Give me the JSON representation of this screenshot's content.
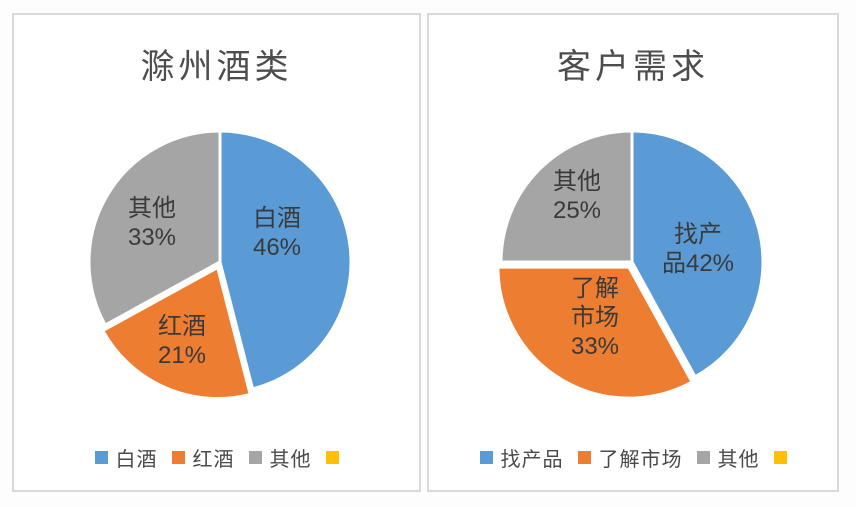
{
  "page": {
    "background": "#fdfdfd",
    "panel_border_color": "#d9d9d9"
  },
  "chart_data": [
    {
      "type": "pie",
      "title": "滁州酒类",
      "categories": [
        "白酒",
        "红酒",
        "其他"
      ],
      "values": [
        46,
        21,
        33
      ],
      "unit": "%",
      "colors": [
        "#5B9BD5",
        "#ED7D31",
        "#A5A5A5"
      ],
      "data_labels": [
        "白酒\n46%",
        "红酒\n21%",
        "其他\n33%"
      ],
      "start_angle_deg": 0,
      "direction": "clockwise",
      "exploded_slice_index": 1,
      "labels_position": "inside",
      "legend": {
        "position": "bottom",
        "entries": [
          {
            "label": "白酒",
            "color": "#5B9BD5"
          },
          {
            "label": "红酒",
            "color": "#ED7D31"
          },
          {
            "label": "其他",
            "color": "#A5A5A5"
          },
          {
            "label": "",
            "color": "#FFC000"
          }
        ]
      }
    },
    {
      "type": "pie",
      "title": "客户需求",
      "categories": [
        "找产品",
        "了解市场",
        "其他"
      ],
      "values": [
        42,
        33,
        25
      ],
      "unit": "%",
      "colors": [
        "#5B9BD5",
        "#ED7D31",
        "#A5A5A5"
      ],
      "data_labels": [
        "找产\n品42%",
        "了解\n市场\n33%",
        "其他\n25%"
      ],
      "start_angle_deg": 0,
      "direction": "clockwise",
      "exploded_slice_index": 1,
      "labels_position": "inside",
      "legend": {
        "position": "bottom",
        "entries": [
          {
            "label": "找产品",
            "color": "#5B9BD5"
          },
          {
            "label": "了解市场",
            "color": "#ED7D31"
          },
          {
            "label": "其他",
            "color": "#A5A5A5"
          },
          {
            "label": "",
            "color": "#FFC000"
          }
        ]
      }
    }
  ]
}
